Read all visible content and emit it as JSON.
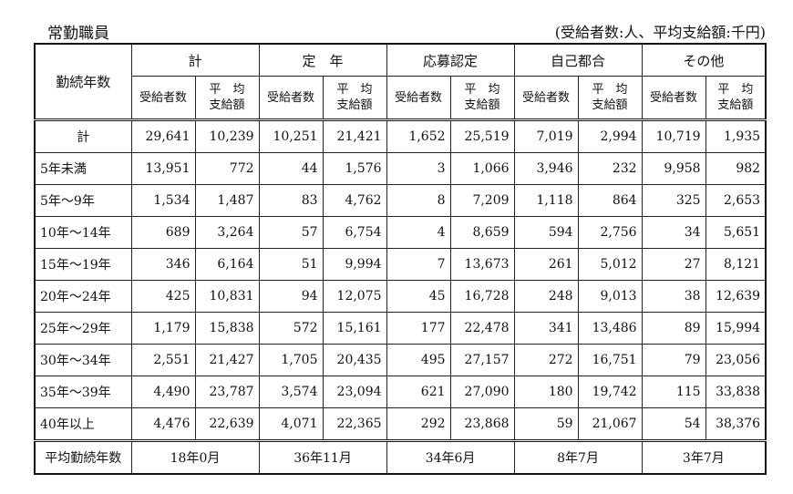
{
  "title": "常勤職員",
  "unit_note": "(受給者数:人、平均支給額:千円)",
  "corner_label": "勤続年数",
  "groups": [
    "計",
    "定　年",
    "応募認定",
    "自己都合",
    "その他"
  ],
  "sub_headers": {
    "count": "受給者数",
    "avg_line1": "平　均",
    "avg_line2": "支給額"
  },
  "rows": [
    {
      "label": "計",
      "values": [
        "29,641",
        "10,239",
        "10,251",
        "21,421",
        "1,652",
        "25,519",
        "7,019",
        "2,994",
        "10,719",
        "1,935"
      ]
    },
    {
      "label": "5年未満",
      "values": [
        "13,951",
        "772",
        "44",
        "1,576",
        "3",
        "1,066",
        "3,946",
        "232",
        "9,958",
        "982"
      ]
    },
    {
      "label": "5年～9年",
      "values": [
        "1,534",
        "1,487",
        "83",
        "4,762",
        "8",
        "7,209",
        "1,118",
        "864",
        "325",
        "2,653"
      ]
    },
    {
      "label": "10年～14年",
      "values": [
        "689",
        "3,264",
        "57",
        "6,754",
        "4",
        "8,659",
        "594",
        "2,756",
        "34",
        "5,651"
      ]
    },
    {
      "label": "15年～19年",
      "values": [
        "346",
        "6,164",
        "51",
        "9,994",
        "7",
        "13,673",
        "261",
        "5,012",
        "27",
        "8,121"
      ]
    },
    {
      "label": "20年～24年",
      "values": [
        "425",
        "10,831",
        "94",
        "12,075",
        "45",
        "16,728",
        "248",
        "9,013",
        "38",
        "12,639"
      ]
    },
    {
      "label": "25年～29年",
      "values": [
        "1,179",
        "15,838",
        "572",
        "15,161",
        "177",
        "22,478",
        "341",
        "13,486",
        "89",
        "15,994"
      ]
    },
    {
      "label": "30年～34年",
      "values": [
        "2,551",
        "21,427",
        "1,705",
        "20,435",
        "495",
        "27,157",
        "272",
        "16,751",
        "79",
        "23,056"
      ]
    },
    {
      "label": "35年～39年",
      "values": [
        "4,490",
        "23,787",
        "3,574",
        "23,094",
        "621",
        "27,090",
        "180",
        "19,742",
        "115",
        "33,838"
      ]
    },
    {
      "label": "40年以上",
      "values": [
        "4,476",
        "22,639",
        "4,071",
        "22,365",
        "292",
        "23,868",
        "59",
        "21,067",
        "54",
        "38,376"
      ]
    }
  ],
  "avg_row": {
    "label": "平均勤続年数",
    "values": [
      "18年0月",
      "36年11月",
      "34年6月",
      "8年7月",
      "3年7月"
    ]
  }
}
